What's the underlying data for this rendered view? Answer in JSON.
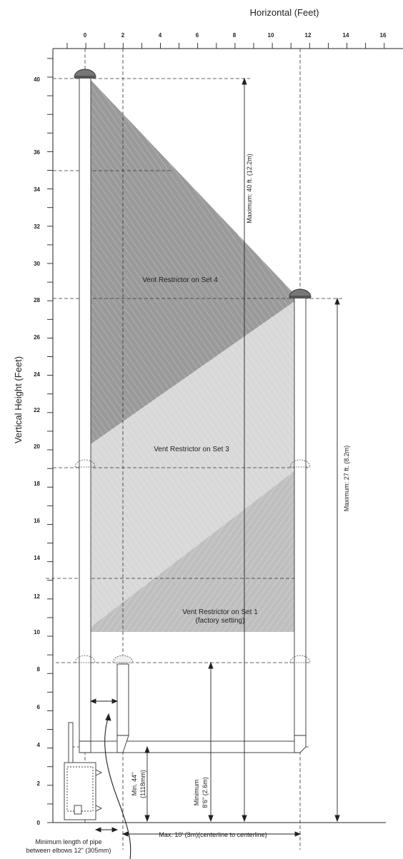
{
  "axes": {
    "x_title": "Horizontal (Feet)",
    "y_title": "Vertical Height (Feet)",
    "x_ticks": [
      "0",
      "2",
      "4",
      "6",
      "8",
      "10",
      "12",
      "14",
      "16"
    ],
    "y_ticks": [
      "0",
      "2",
      "4",
      "6",
      "8",
      "10",
      "12",
      "14",
      "16",
      "18",
      "20",
      "22",
      "24",
      "26",
      "28",
      "30",
      "32",
      "34",
      "36",
      "40"
    ]
  },
  "regions": {
    "set4": "Vent Restrictor on Set 4",
    "set3": "Vent Restrictor on Set 3",
    "set1_line1": "Vent Restrictor on Set 1",
    "set1_line2": "(factory setting)"
  },
  "dimensions": {
    "max_40": "Maximum: 40 ft. (12.2m)",
    "max_27": "Maximum: 27 ft. (8.2m)",
    "min44_line1": "Min. 44\"",
    "min44_line2": "(1118mm)",
    "min86_line1": "Minimum",
    "min86_line2": "8'6\" (2.6m)",
    "max10": "Max. 10' (3m)(centerline to centerline)",
    "pipe_line1": "Minimum length of pipe",
    "pipe_line2": "between elbows 12\" (305mm)"
  },
  "colors": {
    "set4_fill": "#9a9a9a",
    "set3_fill": "#d6d6d6",
    "set1_fill": "#bdbdbd",
    "cap_fill": "#777777"
  }
}
